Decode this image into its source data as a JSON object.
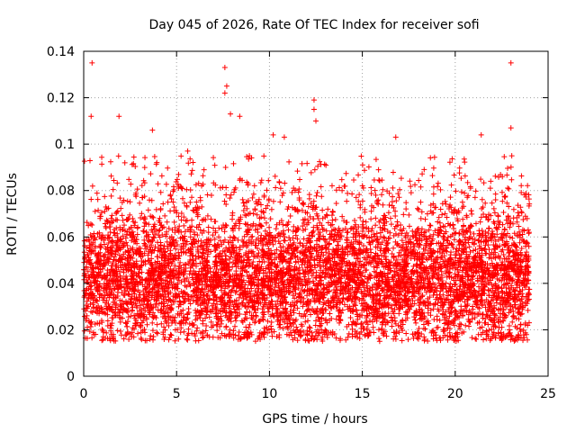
{
  "chart_data": {
    "type": "scatter",
    "title": "Day 045 of 2026, Rate Of TEC Index for receiver sofi",
    "xlabel": "GPS time / hours",
    "ylabel": "ROTI / TECUs",
    "xlim": [
      0,
      25
    ],
    "ylim": [
      0,
      0.14
    ],
    "xticks": [
      "0",
      "5",
      "10",
      "15",
      "20",
      "25"
    ],
    "yticks": [
      "0",
      "0.02",
      "0.04",
      "0.06",
      "0.08",
      "0.1",
      "0.12",
      "0.14"
    ],
    "grid": true,
    "marker": "+",
    "color": "#ff0000",
    "series": [
      {
        "name": "ROTI",
        "band_center": 0.042,
        "band_range": [
          0.015,
          0.085
        ],
        "x_range": [
          0,
          24
        ],
        "outliers": [
          {
            "x": 0.45,
            "y": 0.135
          },
          {
            "x": 0.4,
            "y": 0.112
          },
          {
            "x": 1.9,
            "y": 0.112
          },
          {
            "x": 7.6,
            "y": 0.133
          },
          {
            "x": 7.7,
            "y": 0.125
          },
          {
            "x": 7.6,
            "y": 0.122
          },
          {
            "x": 7.9,
            "y": 0.113
          },
          {
            "x": 8.4,
            "y": 0.112
          },
          {
            "x": 12.4,
            "y": 0.119
          },
          {
            "x": 12.4,
            "y": 0.115
          },
          {
            "x": 12.5,
            "y": 0.11
          },
          {
            "x": 16.8,
            "y": 0.103
          },
          {
            "x": 21.4,
            "y": 0.104
          },
          {
            "x": 23.0,
            "y": 0.135
          },
          {
            "x": 23.0,
            "y": 0.107
          },
          {
            "x": 3.7,
            "y": 0.106
          },
          {
            "x": 5.6,
            "y": 0.097
          },
          {
            "x": 10.2,
            "y": 0.104
          },
          {
            "x": 10.8,
            "y": 0.103
          }
        ]
      }
    ]
  }
}
